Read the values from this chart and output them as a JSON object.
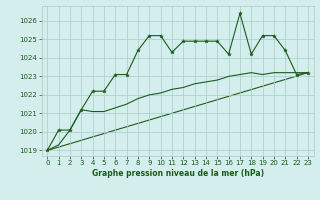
{
  "title": "Graphe pression niveau de la mer (hPa)",
  "background_color": "#d4eeee",
  "grid_color": "#aacccc",
  "line_color": "#1a5c1a",
  "xlim": [
    -0.5,
    23.5
  ],
  "ylim": [
    1018.7,
    1026.8
  ],
  "xticks": [
    0,
    1,
    2,
    3,
    4,
    5,
    6,
    7,
    8,
    9,
    10,
    11,
    12,
    13,
    14,
    15,
    16,
    17,
    18,
    19,
    20,
    21,
    22,
    23
  ],
  "yticks": [
    1019,
    1020,
    1021,
    1022,
    1023,
    1024,
    1025,
    1026
  ],
  "series1_x": [
    0,
    1,
    2,
    3,
    4,
    5,
    6,
    7,
    8,
    9,
    10,
    11,
    12,
    13,
    14,
    15,
    16,
    17,
    18,
    19,
    20,
    21,
    22,
    23
  ],
  "series1_y": [
    1019.0,
    1020.1,
    1020.1,
    1021.2,
    1022.2,
    1022.2,
    1023.1,
    1023.1,
    1024.4,
    1025.2,
    1025.2,
    1024.3,
    1024.9,
    1024.9,
    1024.9,
    1024.9,
    1024.2,
    1026.4,
    1024.2,
    1025.2,
    1025.2,
    1024.4,
    1023.1,
    1023.2
  ],
  "series2_x": [
    0,
    1,
    2,
    3,
    4,
    5,
    6,
    7,
    8,
    9,
    10,
    11,
    12,
    13,
    14,
    15,
    16,
    17,
    18,
    19,
    20,
    21,
    22,
    23
  ],
  "series2_y": [
    1019.0,
    1019.3,
    1020.1,
    1021.2,
    1021.1,
    1021.1,
    1021.3,
    1021.5,
    1021.8,
    1022.0,
    1022.1,
    1022.3,
    1022.4,
    1022.6,
    1022.7,
    1022.8,
    1023.0,
    1023.1,
    1023.2,
    1023.1,
    1023.2,
    1023.2,
    1023.2,
    1023.2
  ],
  "series3_x": [
    0,
    23
  ],
  "series3_y": [
    1019.0,
    1023.2
  ],
  "xlabel_fontsize": 5.5,
  "tick_fontsize": 5
}
